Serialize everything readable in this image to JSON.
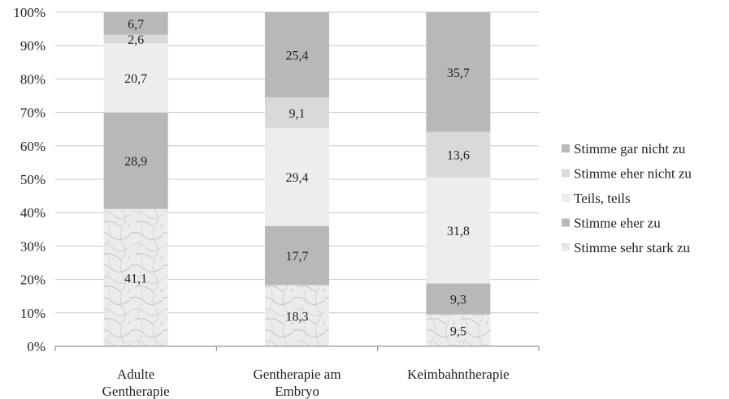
{
  "chart_data": {
    "type": "bar",
    "stacked": true,
    "percent": true,
    "title": "",
    "xlabel": "",
    "ylabel": "",
    "ylim": [
      0,
      100
    ],
    "yticks": [
      "0%",
      "10%",
      "20%",
      "30%",
      "40%",
      "50%",
      "60%",
      "70%",
      "80%",
      "90%",
      "100%"
    ],
    "grid": true,
    "legend_position": "right",
    "categories": [
      [
        "Adulte",
        "Gentherapie"
      ],
      [
        "Gentherapie am",
        "Embryo"
      ],
      [
        "Keimbahntherapie"
      ]
    ],
    "series": [
      {
        "name": "Stimme sehr stark zu",
        "values": [
          41.1,
          18.3,
          9.5
        ],
        "labels": [
          "41,1",
          "18,3",
          "9,5"
        ],
        "color": "#e6e6e6",
        "pattern": "marble"
      },
      {
        "name": "Stimme eher zu",
        "values": [
          28.9,
          17.7,
          9.3
        ],
        "labels": [
          "28,9",
          "17,7",
          "9,3"
        ],
        "color": "#b8b8b8"
      },
      {
        "name": "Teils, teils",
        "values": [
          20.7,
          29.4,
          31.8
        ],
        "labels": [
          "20,7",
          "29,4",
          "31,8"
        ],
        "color": "#ededed"
      },
      {
        "name": "Stimme eher nicht zu",
        "values": [
          2.6,
          9.1,
          13.6
        ],
        "labels": [
          "2,6",
          "9,1",
          "13,6"
        ],
        "color": "#d9d9d9"
      },
      {
        "name": "Stimme gar nicht zu",
        "values": [
          6.7,
          25.4,
          35.7
        ],
        "labels": [
          "6,7",
          "25,4",
          "35,7"
        ],
        "color": "#b8b8b8"
      }
    ],
    "legend_order": [
      "Stimme gar nicht zu",
      "Stimme eher nicht zu",
      "Teils, teils",
      "Stimme eher zu",
      "Stimme sehr stark zu"
    ]
  }
}
